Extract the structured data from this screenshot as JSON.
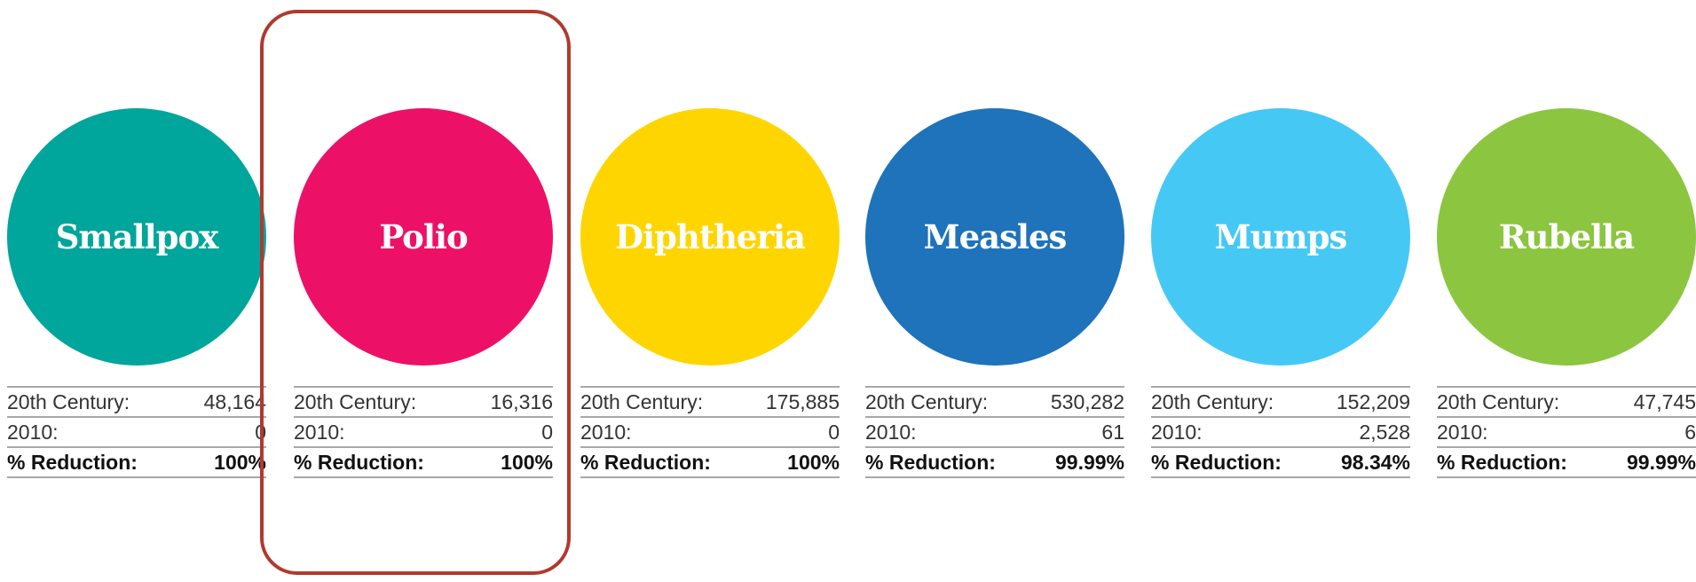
{
  "row_labels": {
    "century": "20th Century:",
    "year2010": "2010:",
    "reduction": "% Reduction:"
  },
  "diseases": [
    {
      "name": "Smallpox",
      "color": "#00A59B",
      "century": "48,164",
      "year2010": "0",
      "reduction": "100%"
    },
    {
      "name": "Polio",
      "color": "#EC1167",
      "century": "16,316",
      "year2010": "0",
      "reduction": "100%"
    },
    {
      "name": "Diphtheria",
      "color": "#FFD500",
      "century": "175,885",
      "year2010": "0",
      "reduction": "100%"
    },
    {
      "name": "Measles",
      "color": "#1E73BA",
      "century": "530,282",
      "year2010": "61",
      "reduction": "99.99%"
    },
    {
      "name": "Mumps",
      "color": "#46C8F5",
      "century": "152,209",
      "year2010": "2,528",
      "reduction": "98.34%"
    },
    {
      "name": "Rubella",
      "color": "#8CC53F",
      "century": "47,745",
      "year2010": "6",
      "reduction": "99.99%"
    }
  ],
  "highlight": {
    "target": "Polio",
    "color": "#B03A2E"
  }
}
